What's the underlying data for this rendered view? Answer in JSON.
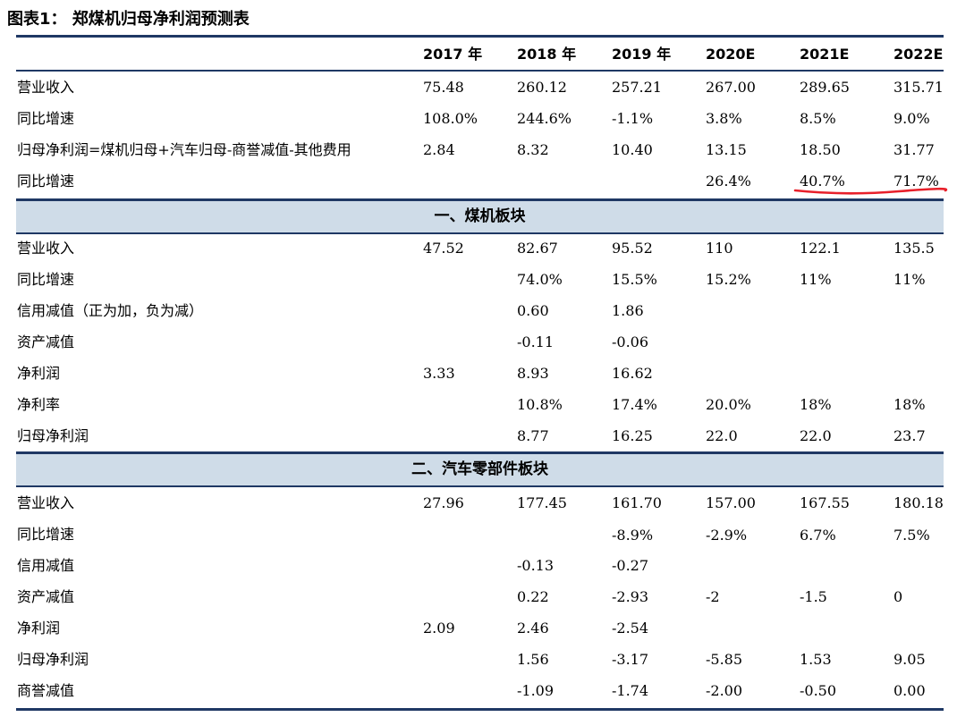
{
  "title": "图表1： 郑煤机归母净利润预测表",
  "columns": [
    "2017 年",
    "2018 年",
    "2019 年",
    "2020E",
    "2021E",
    "2022E"
  ],
  "summary_rows": [
    {
      "label": "营业收入",
      "values": [
        "75.48",
        "260.12",
        "257.21",
        "267.00",
        "289.65",
        "315.71"
      ]
    },
    {
      "label": "同比增速",
      "values": [
        "108.0%",
        "244.6%",
        "-1.1%",
        "3.8%",
        "8.5%",
        "9.0%"
      ]
    },
    {
      "label": "归母净利润=煤机归母+汽车归母-商誉减值-其他费用",
      "values": [
        "2.84",
        "8.32",
        "10.40",
        "13.15",
        "18.50",
        "31.77"
      ]
    },
    {
      "label": "同比增速",
      "values": [
        "",
        "",
        "",
        "26.4%",
        "40.7%",
        "71.7%"
      ]
    }
  ],
  "sections": [
    {
      "title": "一、煤机板块",
      "rows": [
        {
          "label": "营业收入",
          "values": [
            "47.52",
            "82.67",
            "95.52",
            "110",
            "122.1",
            "135.5"
          ]
        },
        {
          "label": "同比增速",
          "values": [
            "",
            "74.0%",
            "15.5%",
            "15.2%",
            "11%",
            "11%"
          ]
        },
        {
          "label": "信用减值（正为加，负为减）",
          "values": [
            "",
            "0.60",
            "1.86",
            "",
            "",
            ""
          ]
        },
        {
          "label": "资产减值",
          "values": [
            "",
            "-0.11",
            "-0.06",
            "",
            "",
            ""
          ]
        },
        {
          "label": "净利润",
          "values": [
            "3.33",
            "8.93",
            "16.62",
            "",
            "",
            ""
          ]
        },
        {
          "label": "净利率",
          "values": [
            "",
            "10.8%",
            "17.4%",
            "20.0%",
            "18%",
            "18%"
          ]
        },
        {
          "label": "归母净利润",
          "values": [
            "",
            "8.77",
            "16.25",
            "22.0",
            "22.0",
            "23.7"
          ]
        }
      ]
    },
    {
      "title": "二、汽车零部件板块",
      "rows": [
        {
          "label": "营业收入",
          "values": [
            "27.96",
            "177.45",
            "161.70",
            "157.00",
            "167.55",
            "180.18"
          ]
        },
        {
          "label": "同比增速",
          "values": [
            "",
            "",
            "-8.9%",
            "-2.9%",
            "6.7%",
            "7.5%"
          ]
        },
        {
          "label": "信用减值",
          "values": [
            "",
            "-0.13",
            "-0.27",
            "",
            "",
            ""
          ]
        },
        {
          "label": "资产减值",
          "values": [
            "",
            "0.22",
            "-2.93",
            "-2",
            "-1.5",
            "0"
          ]
        },
        {
          "label": "净利润",
          "values": [
            "2.09",
            "2.46",
            "-2.54",
            "",
            "",
            ""
          ]
        },
        {
          "label": "归母净利润",
          "values": [
            "",
            "1.56",
            "-3.17",
            "-5.85",
            "1.53",
            "9.05"
          ]
        },
        {
          "label": "商誉减值",
          "values": [
            "",
            "-1.09",
            "-1.74",
            "-2.00",
            "-0.50",
            "0.00"
          ]
        }
      ]
    }
  ],
  "highlight_color": "#e8202a",
  "rule_color": "#1f3864",
  "band_color": "#cfdce8"
}
